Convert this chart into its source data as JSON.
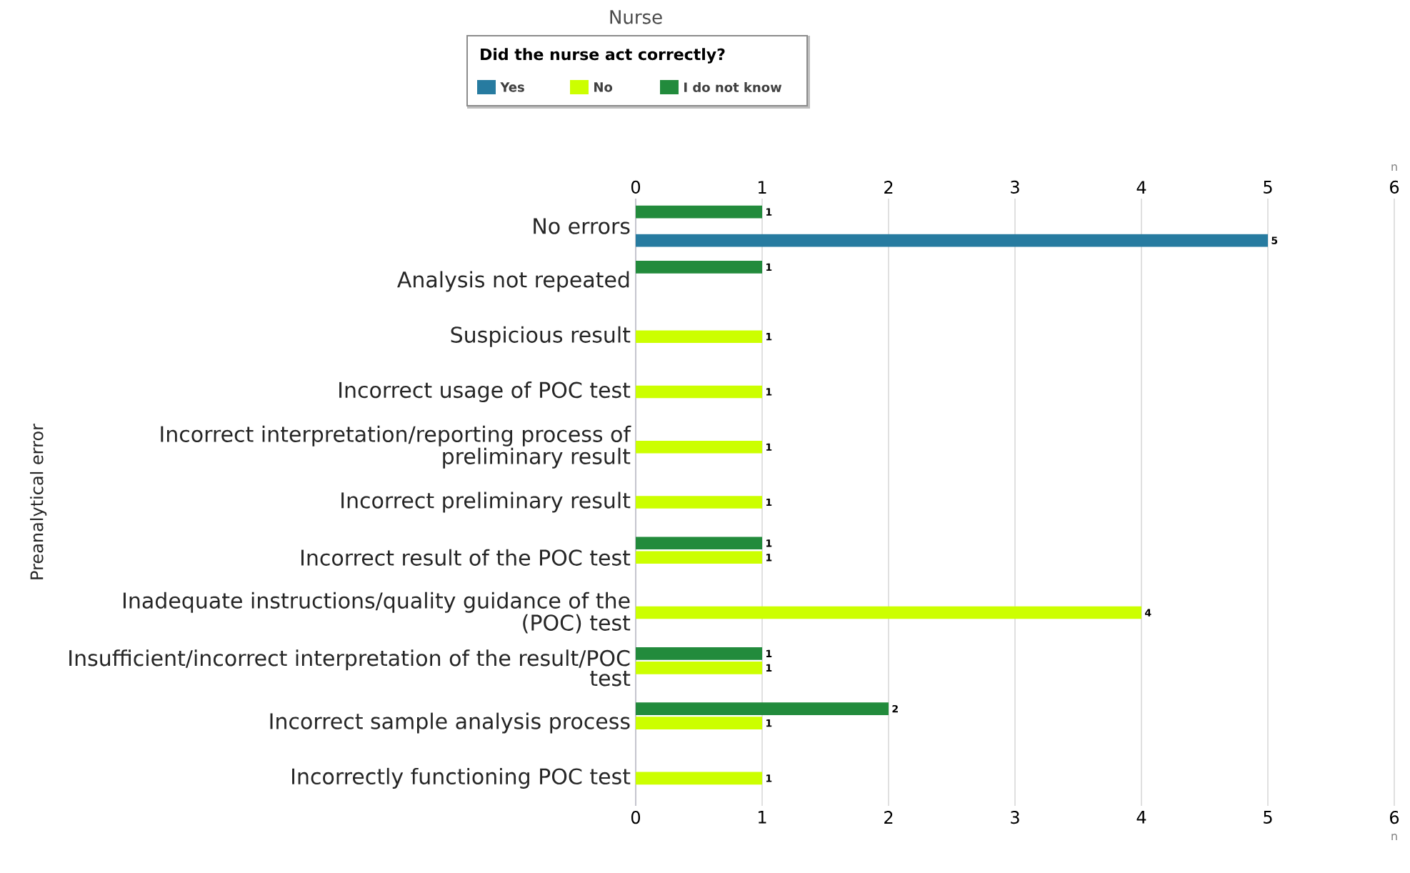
{
  "chart_data": {
    "type": "bar",
    "orientation": "horizontal",
    "title": "Nurse",
    "legend_title": "Did the nurse act correctly?",
    "xlabel": "n",
    "x2label": "n",
    "ylabel": "Preanalytical error",
    "categories": [
      "No errors",
      "Analysis not repeated",
      "Suspicious result",
      "Incorrect usage of POC test",
      "Incorrect interpretation/reporting process of preliminary result",
      "Incorrect preliminary result",
      "Incorrect result of the POC test",
      "Inadequate instructions/quality guidance of the (POC) test",
      "Insufficient/incorrect interpretation of the result/POC test",
      "Incorrect sample analysis process",
      "Incorrectly functioning POC test"
    ],
    "series": [
      {
        "name": "Yes",
        "color": "#277ba0",
        "values": [
          5,
          null,
          null,
          null,
          null,
          null,
          null,
          null,
          null,
          null,
          null
        ]
      },
      {
        "name": "No",
        "color": "#ccff00",
        "values": [
          null,
          null,
          1,
          1,
          1,
          1,
          1,
          4,
          1,
          1,
          1
        ]
      },
      {
        "name": "I do not know",
        "color": "#228b3c",
        "values": [
          1,
          1,
          null,
          null,
          null,
          null,
          1,
          null,
          1,
          2,
          null
        ]
      }
    ],
    "xlim": [
      0,
      6
    ],
    "xticks": [
      0,
      1,
      2,
      3,
      4,
      5,
      6
    ],
    "x2lim": [
      0,
      6
    ],
    "x2ticks": [
      0,
      1,
      2,
      3,
      4,
      5,
      6
    ],
    "grid": "x",
    "legend": "top",
    "data_labels": true
  }
}
